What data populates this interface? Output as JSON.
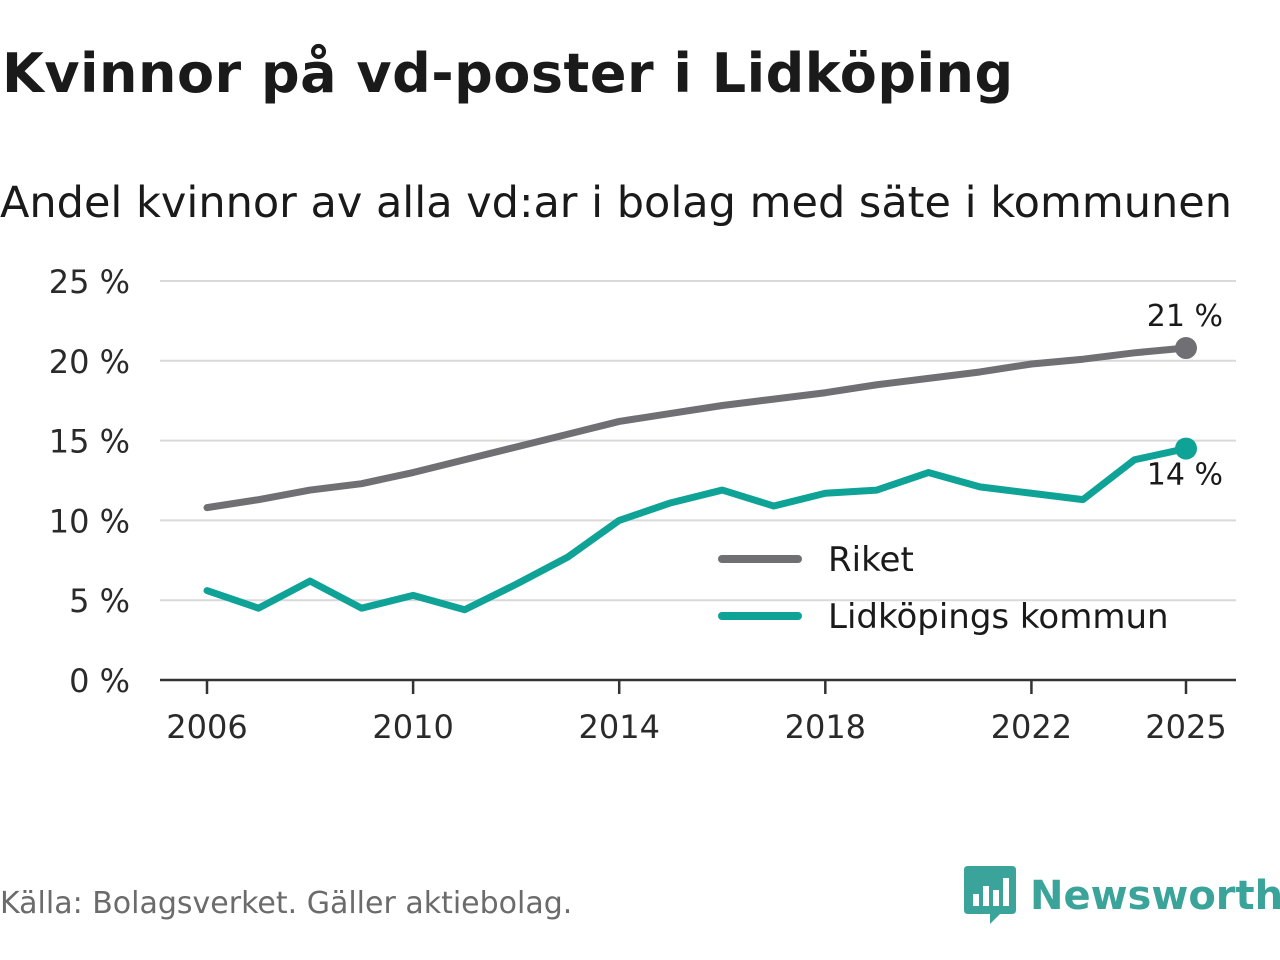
{
  "title": "Kvinnor på vd-poster i Lidköping",
  "subtitle": "Andel kvinnor av alla vd:ar i bolag med säte i kommunen",
  "source": "Källa: Bolagsverket. Gäller aktiebolag.",
  "brand": {
    "name": "Newsworthy",
    "icon": "newsworthy-logo-icon",
    "color": "#3aa39a"
  },
  "chart_data": {
    "type": "line",
    "title": "Kvinnor på vd-poster i Lidköping",
    "subtitle": "Andel kvinnor av alla vd:ar i bolag med säte i kommunen",
    "xlabel": "",
    "ylabel": "",
    "xlim": [
      2006,
      2025
    ],
    "ylim": [
      0,
      25
    ],
    "xticks": [
      2006,
      2010,
      2014,
      2018,
      2022,
      2025
    ],
    "yticks": [
      0,
      5,
      10,
      15,
      20,
      25
    ],
    "ytick_labels": [
      "0 %",
      "5 %",
      "10 %",
      "15 %",
      "20 %",
      "25 %"
    ],
    "grid": true,
    "legend_position": "center-right",
    "x": [
      2006,
      2007,
      2008,
      2009,
      2010,
      2011,
      2012,
      2013,
      2014,
      2015,
      2016,
      2017,
      2018,
      2019,
      2020,
      2021,
      2022,
      2023,
      2024,
      2025
    ],
    "series": [
      {
        "name": "Riket",
        "color": "#706f74",
        "values": [
          10.8,
          11.3,
          11.9,
          12.3,
          13.0,
          13.8,
          14.6,
          15.4,
          16.2,
          16.7,
          17.2,
          17.6,
          18.0,
          18.5,
          18.9,
          19.3,
          19.8,
          20.1,
          20.5,
          20.8
        ],
        "end_label": "21 %"
      },
      {
        "name": "Lidköpings kommun",
        "color": "#0fa397",
        "values": [
          5.6,
          4.5,
          6.2,
          4.5,
          5.3,
          4.4,
          6.0,
          7.7,
          10.0,
          11.1,
          11.9,
          10.9,
          11.7,
          11.9,
          13.0,
          12.1,
          11.7,
          11.3,
          13.8,
          14.5
        ],
        "end_label": "14 %"
      }
    ]
  }
}
